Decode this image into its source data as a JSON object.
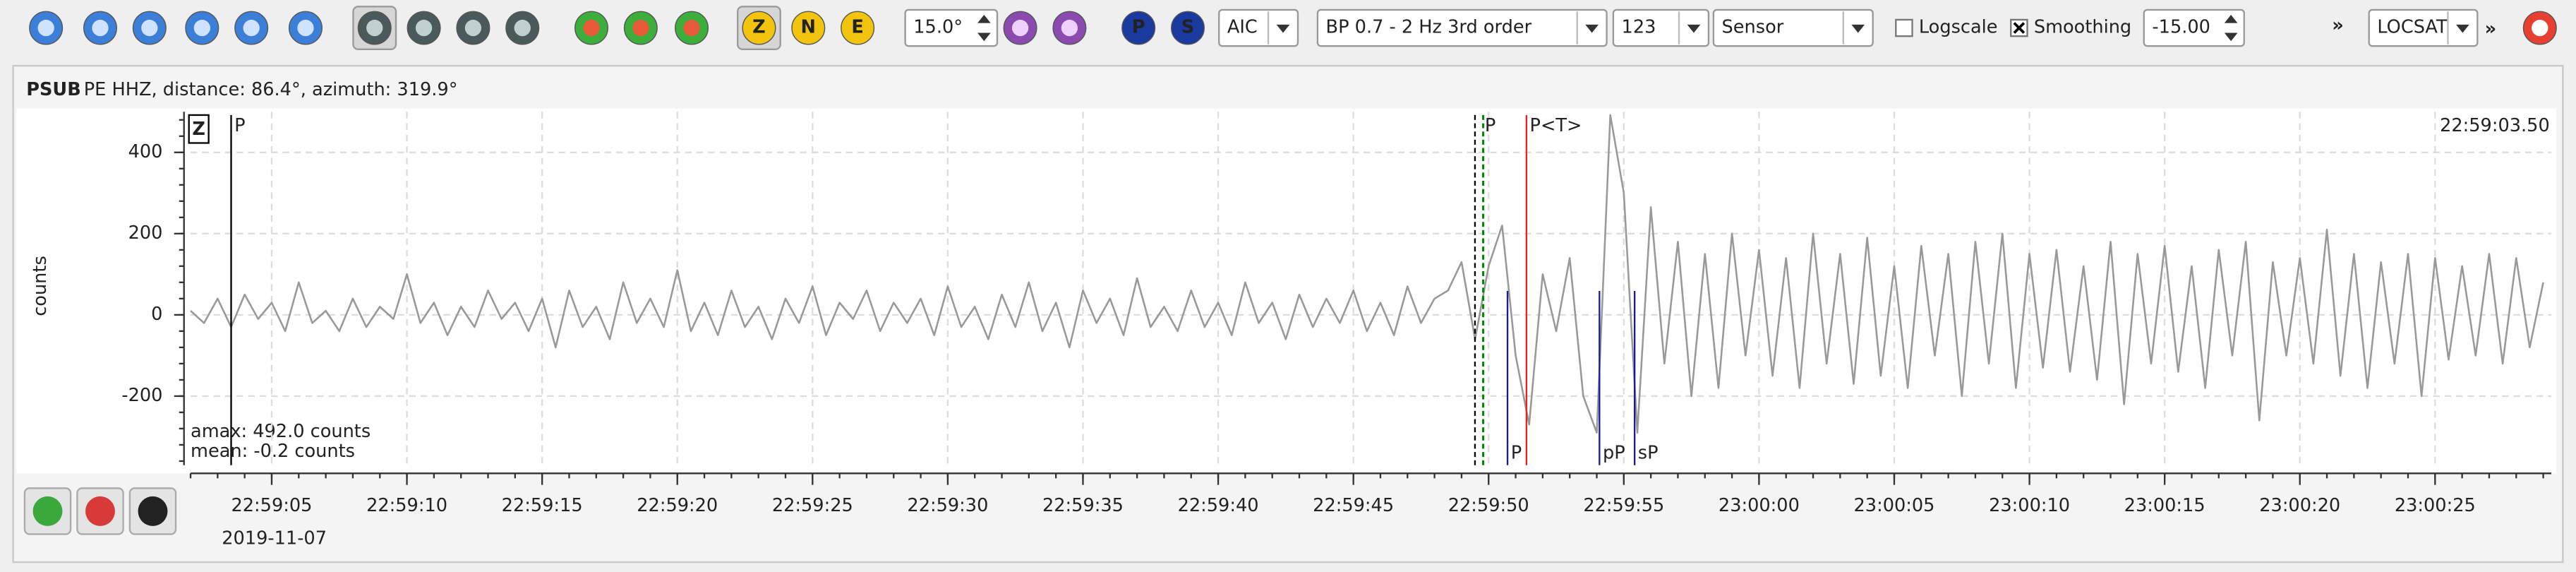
{
  "toolbar": {
    "angle": "15.0°",
    "picker": "AIC",
    "filter": "BP 0.7 - 2 Hz  3rd order",
    "unit_count": "123",
    "unit": "Sensor",
    "logscale": "Logscale",
    "smoothing": "Smoothing",
    "offset": "-15.00",
    "more": "»",
    "locator": "LOCSAT",
    "more2": "»",
    "components": [
      "Z",
      "N",
      "E"
    ],
    "phases": [
      "P",
      "S"
    ]
  },
  "trace": {
    "station": "PSUB",
    "info": "PE  HHZ, distance: 86.4°, azimuth: 319.9°",
    "ylabel": "counts",
    "component": "Z",
    "start_time": "22:59:03.50",
    "date": "2019-11-07",
    "amax": "amax: 492.0 counts",
    "mean": "mean: -0.2 counts",
    "ylim": [
      -370,
      500
    ],
    "yticks": [
      -200,
      0,
      200,
      400
    ],
    "xlim": [
      2,
      89.3
    ],
    "xticks": [
      {
        "value": 5,
        "label": "22:59:05"
      },
      {
        "value": 10,
        "label": "22:59:10"
      },
      {
        "value": 15,
        "label": "22:59:15"
      },
      {
        "value": 20,
        "label": "22:59:20"
      },
      {
        "value": 25,
        "label": "22:59:25"
      },
      {
        "value": 30,
        "label": "22:59:30"
      },
      {
        "value": 35,
        "label": "22:59:35"
      },
      {
        "value": 40,
        "label": "22:59:40"
      },
      {
        "value": 45,
        "label": "22:59:45"
      },
      {
        "value": 50,
        "label": "22:59:50"
      },
      {
        "value": 55,
        "label": "22:59:55"
      },
      {
        "value": 60,
        "label": "23:00:00"
      },
      {
        "value": 65,
        "label": "23:00:05"
      },
      {
        "value": 70,
        "label": "23:00:10"
      },
      {
        "value": 75,
        "label": "23:00:15"
      },
      {
        "value": 80,
        "label": "23:00:20"
      },
      {
        "value": 85,
        "label": "23:00:25"
      }
    ],
    "color": "#999999",
    "samples": [
      [
        2,
        10
      ],
      [
        2.5,
        -20
      ],
      [
        3,
        40
      ],
      [
        3.5,
        -30
      ],
      [
        4,
        50
      ],
      [
        4.5,
        -10
      ],
      [
        5,
        30
      ],
      [
        5.5,
        -40
      ],
      [
        6,
        80
      ],
      [
        6.5,
        -20
      ],
      [
        7,
        10
      ],
      [
        7.5,
        -40
      ],
      [
        8,
        40
      ],
      [
        8.5,
        -30
      ],
      [
        9,
        20
      ],
      [
        9.5,
        -10
      ],
      [
        10,
        100
      ],
      [
        10.5,
        -20
      ],
      [
        11,
        30
      ],
      [
        11.5,
        -50
      ],
      [
        12,
        20
      ],
      [
        12.5,
        -30
      ],
      [
        13,
        60
      ],
      [
        13.5,
        -10
      ],
      [
        14,
        30
      ],
      [
        14.5,
        -40
      ],
      [
        15,
        40
      ],
      [
        15.5,
        -80
      ],
      [
        16,
        60
      ],
      [
        16.5,
        -30
      ],
      [
        17,
        20
      ],
      [
        17.5,
        -60
      ],
      [
        18,
        80
      ],
      [
        18.5,
        -20
      ],
      [
        19,
        40
      ],
      [
        19.5,
        -30
      ],
      [
        20,
        110
      ],
      [
        20.5,
        -40
      ],
      [
        21,
        30
      ],
      [
        21.5,
        -50
      ],
      [
        22,
        60
      ],
      [
        22.5,
        -30
      ],
      [
        23,
        20
      ],
      [
        23.5,
        -60
      ],
      [
        24,
        40
      ],
      [
        24.5,
        -20
      ],
      [
        25,
        70
      ],
      [
        25.5,
        -50
      ],
      [
        26,
        30
      ],
      [
        26.5,
        -10
      ],
      [
        27,
        60
      ],
      [
        27.5,
        -40
      ],
      [
        28,
        30
      ],
      [
        28.5,
        -20
      ],
      [
        29,
        40
      ],
      [
        29.5,
        -50
      ],
      [
        30,
        70
      ],
      [
        30.5,
        -30
      ],
      [
        31,
        20
      ],
      [
        31.5,
        -60
      ],
      [
        32,
        50
      ],
      [
        32.5,
        -30
      ],
      [
        33,
        80
      ],
      [
        33.5,
        -40
      ],
      [
        34,
        30
      ],
      [
        34.5,
        -80
      ],
      [
        35,
        60
      ],
      [
        35.5,
        -20
      ],
      [
        36,
        40
      ],
      [
        36.5,
        -50
      ],
      [
        37,
        90
      ],
      [
        37.5,
        -30
      ],
      [
        38,
        20
      ],
      [
        38.5,
        -40
      ],
      [
        39,
        60
      ],
      [
        39.5,
        -30
      ],
      [
        40,
        30
      ],
      [
        40.5,
        -50
      ],
      [
        41,
        80
      ],
      [
        41.5,
        -20
      ],
      [
        42,
        30
      ],
      [
        42.5,
        -60
      ],
      [
        43,
        50
      ],
      [
        43.5,
        -30
      ],
      [
        44,
        40
      ],
      [
        44.5,
        -20
      ],
      [
        45,
        60
      ],
      [
        45.5,
        -40
      ],
      [
        46,
        30
      ],
      [
        46.5,
        -50
      ],
      [
        47,
        70
      ],
      [
        47.5,
        -20
      ],
      [
        48,
        40
      ],
      [
        48.5,
        60
      ],
      [
        49,
        130
      ],
      [
        49.5,
        -60
      ],
      [
        50,
        120
      ],
      [
        50.5,
        220
      ],
      [
        51,
        -100
      ],
      [
        51.5,
        -270
      ],
      [
        52,
        100
      ],
      [
        52.5,
        -40
      ],
      [
        53,
        140
      ],
      [
        53.5,
        -200
      ],
      [
        54,
        -290
      ],
      [
        54.5,
        492
      ],
      [
        55,
        300
      ],
      [
        55.5,
        -290
      ],
      [
        56,
        265
      ],
      [
        56.5,
        -120
      ],
      [
        57,
        180
      ],
      [
        57.5,
        -200
      ],
      [
        58,
        150
      ],
      [
        58.5,
        -180
      ],
      [
        59,
        200
      ],
      [
        59.5,
        -100
      ],
      [
        60,
        160
      ],
      [
        60.5,
        -150
      ],
      [
        61,
        140
      ],
      [
        61.5,
        -180
      ],
      [
        62,
        200
      ],
      [
        62.5,
        -120
      ],
      [
        63,
        150
      ],
      [
        63.5,
        -170
      ],
      [
        64,
        190
      ],
      [
        64.5,
        -150
      ],
      [
        65,
        120
      ],
      [
        65.5,
        -180
      ],
      [
        66,
        170
      ],
      [
        66.5,
        -100
      ],
      [
        67,
        150
      ],
      [
        67.5,
        -200
      ],
      [
        68,
        180
      ],
      [
        68.5,
        -120
      ],
      [
        69,
        200
      ],
      [
        69.5,
        -180
      ],
      [
        70,
        150
      ],
      [
        70.5,
        -130
      ],
      [
        71,
        160
      ],
      [
        71.5,
        -140
      ],
      [
        72,
        120
      ],
      [
        72.5,
        -160
      ],
      [
        73,
        180
      ],
      [
        73.5,
        -220
      ],
      [
        74,
        150
      ],
      [
        74.5,
        -120
      ],
      [
        75,
        170
      ],
      [
        75.5,
        -140
      ],
      [
        76,
        120
      ],
      [
        76.5,
        -180
      ],
      [
        77,
        160
      ],
      [
        77.5,
        -100
      ],
      [
        78,
        180
      ],
      [
        78.5,
        -260
      ],
      [
        79,
        130
      ],
      [
        79.5,
        -100
      ],
      [
        80,
        140
      ],
      [
        80.5,
        -120
      ],
      [
        81,
        210
      ],
      [
        81.5,
        -150
      ],
      [
        82,
        150
      ],
      [
        82.5,
        -180
      ],
      [
        83,
        130
      ],
      [
        83.5,
        -120
      ],
      [
        84,
        150
      ],
      [
        84.5,
        -200
      ],
      [
        85,
        140
      ],
      [
        85.5,
        -110
      ],
      [
        86,
        120
      ],
      [
        86.5,
        -100
      ],
      [
        87,
        150
      ],
      [
        87.5,
        -120
      ],
      [
        88,
        140
      ],
      [
        88.5,
        -80
      ],
      [
        89,
        80
      ]
    ],
    "picks": [
      {
        "label": "P",
        "time": 3.5,
        "color": "#000000",
        "style": "top"
      },
      {
        "label": "P",
        "time": 49.8,
        "color": "#008800",
        "style": "dashed"
      },
      {
        "label": "P<T>",
        "time": 51.4,
        "color": "#ee2222",
        "style": "top"
      },
      {
        "label": "P",
        "time": 50.7,
        "color": "#1a1aa0",
        "style": "bottom"
      },
      {
        "label": "pP",
        "time": 54.1,
        "color": "#1a1aa0",
        "style": "bottom"
      },
      {
        "label": "sP",
        "time": 55.4,
        "color": "#1a1aa0",
        "style": "bottom"
      }
    ]
  }
}
